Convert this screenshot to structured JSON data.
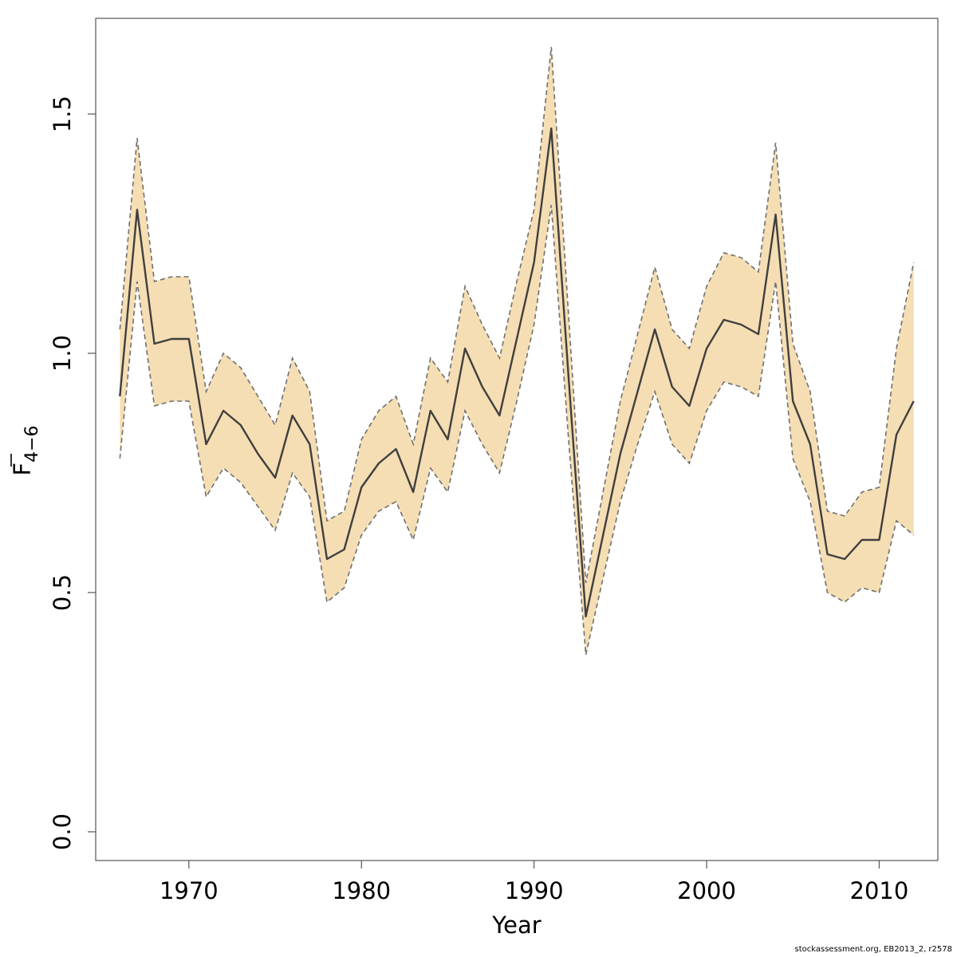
{
  "footer_text": "stockassessment.org, EB2013_2, r2578",
  "colors": {
    "band": "#F5DEB3",
    "bounds": "#707070",
    "line": "#3f3f3f",
    "axis": "#555555"
  },
  "chart_data": {
    "type": "area",
    "title": "",
    "xlabel": "Year",
    "ylabel": {
      "base": "F",
      "subscript": "4−6",
      "overline": true
    },
    "xlim": [
      1964.6,
      2013.4
    ],
    "ylim": [
      -0.06,
      1.7
    ],
    "xticks": [
      1970,
      1980,
      1990,
      2000,
      2010
    ],
    "yticks": [
      0.0,
      0.5,
      1.0,
      1.5
    ],
    "ytick_labels": [
      "0.0",
      "0.5",
      "1.0",
      "1.5"
    ],
    "grid": false,
    "x": [
      1966,
      1967,
      1968,
      1969,
      1970,
      1971,
      1972,
      1973,
      1974,
      1975,
      1976,
      1977,
      1978,
      1979,
      1980,
      1981,
      1982,
      1983,
      1984,
      1985,
      1986,
      1987,
      1988,
      1989,
      1990,
      1991,
      1992,
      1993,
      1994,
      1995,
      1996,
      1997,
      1998,
      1999,
      2000,
      2001,
      2002,
      2003,
      2004,
      2005,
      2006,
      2007,
      2008,
      2009,
      2010,
      2011,
      2012
    ],
    "series": [
      {
        "role": "estimate",
        "values": [
          0.91,
          1.3,
          1.02,
          1.03,
          1.03,
          0.81,
          0.88,
          0.85,
          0.79,
          0.74,
          0.87,
          0.81,
          0.57,
          0.59,
          0.72,
          0.77,
          0.8,
          0.71,
          0.88,
          0.82,
          1.01,
          0.93,
          0.87,
          1.03,
          1.19,
          1.47,
          0.95,
          0.45,
          0.62,
          0.79,
          0.92,
          1.05,
          0.93,
          0.89,
          1.01,
          1.07,
          1.06,
          1.04,
          1.29,
          0.9,
          0.81,
          0.58,
          0.57,
          0.61,
          0.61,
          0.83,
          0.9
        ]
      },
      {
        "role": "upper",
        "values": [
          1.05,
          1.45,
          1.15,
          1.16,
          1.16,
          0.92,
          1.0,
          0.97,
          0.91,
          0.85,
          0.99,
          0.92,
          0.65,
          0.67,
          0.82,
          0.88,
          0.91,
          0.81,
          0.99,
          0.94,
          1.14,
          1.06,
          0.99,
          1.15,
          1.3,
          1.64,
          1.08,
          0.52,
          0.71,
          0.9,
          1.04,
          1.18,
          1.05,
          1.01,
          1.14,
          1.21,
          1.2,
          1.17,
          1.44,
          1.02,
          0.92,
          0.67,
          0.66,
          0.71,
          0.72,
          1.01,
          1.19
        ]
      },
      {
        "role": "lower",
        "values": [
          0.78,
          1.15,
          0.89,
          0.9,
          0.9,
          0.7,
          0.76,
          0.73,
          0.68,
          0.63,
          0.75,
          0.7,
          0.48,
          0.51,
          0.62,
          0.67,
          0.69,
          0.61,
          0.76,
          0.71,
          0.88,
          0.81,
          0.75,
          0.9,
          1.06,
          1.31,
          0.82,
          0.37,
          0.53,
          0.69,
          0.81,
          0.92,
          0.81,
          0.77,
          0.88,
          0.94,
          0.93,
          0.91,
          1.15,
          0.78,
          0.69,
          0.5,
          0.48,
          0.51,
          0.5,
          0.65,
          0.62
        ]
      }
    ]
  }
}
